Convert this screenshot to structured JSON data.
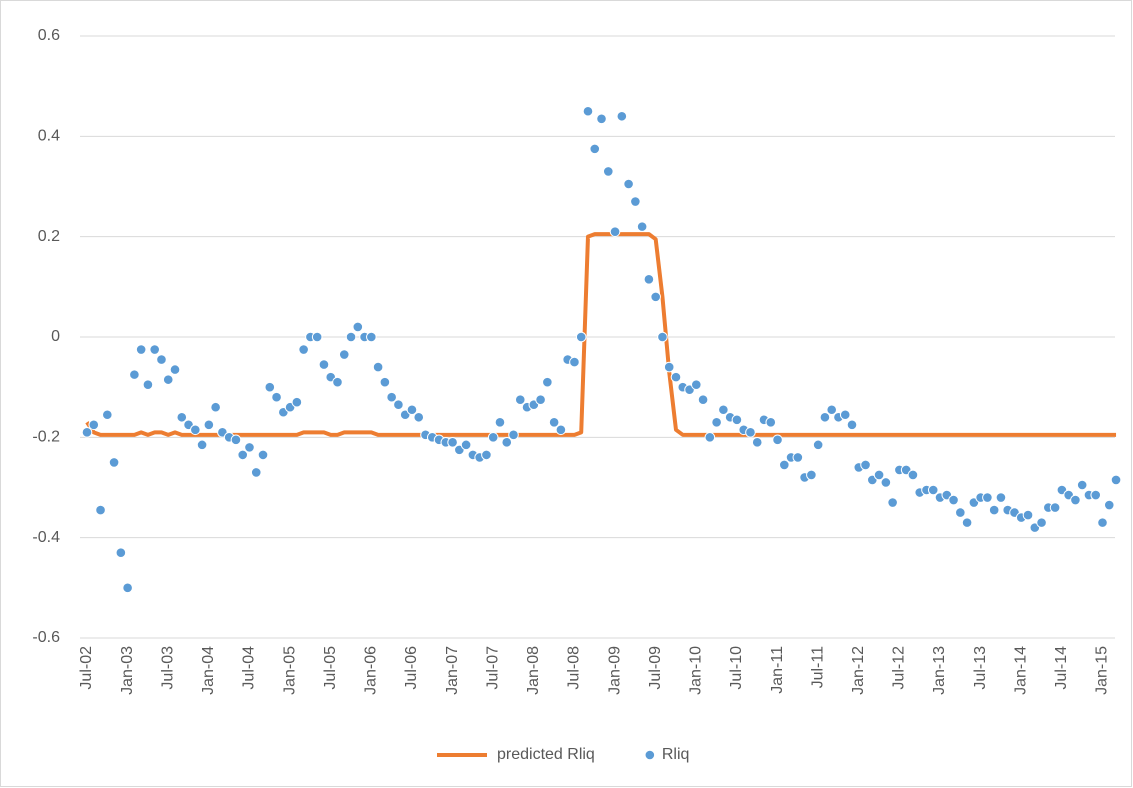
{
  "chart_data": {
    "type": "combo",
    "categories": [
      "Jul-02",
      null,
      null,
      null,
      null,
      null,
      "Jan-03",
      null,
      null,
      null,
      null,
      null,
      "Jul-03",
      null,
      null,
      null,
      null,
      null,
      "Jan-04",
      null,
      null,
      null,
      null,
      null,
      "Jul-04",
      null,
      null,
      null,
      null,
      null,
      "Jan-05",
      null,
      null,
      null,
      null,
      null,
      "Jul-05",
      null,
      null,
      null,
      null,
      null,
      "Jan-06",
      null,
      null,
      null,
      null,
      null,
      "Jul-06",
      null,
      null,
      null,
      null,
      null,
      "Jan-07",
      null,
      null,
      null,
      null,
      null,
      "Jul-07",
      null,
      null,
      null,
      null,
      null,
      "Jan-08",
      null,
      null,
      null,
      null,
      null,
      "Jul-08",
      null,
      null,
      null,
      null,
      null,
      "Jan-09",
      null,
      null,
      null,
      null,
      null,
      "Jul-09",
      null,
      null,
      null,
      null,
      null,
      "Jan-10",
      null,
      null,
      null,
      null,
      null,
      "Jul-10",
      null,
      null,
      null,
      null,
      null,
      "Jan-11",
      null,
      null,
      null,
      null,
      null,
      "Jul-11",
      null,
      null,
      null,
      null,
      null,
      "Jan-12",
      null,
      null,
      null,
      null,
      null,
      "Jul-12",
      null,
      null,
      null,
      null,
      null,
      "Jan-13",
      null,
      null,
      null,
      null,
      null,
      "Jul-13",
      null,
      null,
      null,
      null,
      null,
      "Jan-14",
      null,
      null,
      null,
      null,
      null,
      "Jul-14",
      null,
      null,
      null,
      null,
      null,
      "Jan-15",
      null,
      null
    ],
    "series": [
      {
        "name": "predicted Rliq",
        "type": "line",
        "color": "#ed7d31",
        "values": [
          -0.17,
          -0.19,
          -0.195,
          -0.195,
          -0.195,
          -0.195,
          -0.195,
          -0.195,
          -0.19,
          -0.195,
          -0.19,
          -0.19,
          -0.195,
          -0.19,
          -0.195,
          -0.195,
          -0.195,
          -0.195,
          -0.195,
          -0.195,
          -0.195,
          -0.195,
          -0.195,
          -0.195,
          -0.195,
          -0.195,
          -0.195,
          -0.195,
          -0.195,
          -0.195,
          -0.195,
          -0.195,
          -0.19,
          -0.19,
          -0.19,
          -0.19,
          -0.195,
          -0.195,
          -0.19,
          -0.19,
          -0.19,
          -0.19,
          -0.19,
          -0.195,
          -0.195,
          -0.195,
          -0.195,
          -0.195,
          -0.195,
          -0.195,
          -0.195,
          -0.195,
          -0.195,
          -0.195,
          -0.195,
          -0.195,
          -0.195,
          -0.195,
          -0.195,
          -0.195,
          -0.195,
          -0.195,
          -0.195,
          -0.195,
          -0.195,
          -0.195,
          -0.195,
          -0.195,
          -0.195,
          -0.195,
          -0.195,
          -0.195,
          -0.195,
          -0.19,
          0.2,
          0.205,
          0.205,
          0.205,
          0.205,
          0.205,
          0.205,
          0.205,
          0.205,
          0.205,
          0.195,
          0.08,
          -0.07,
          -0.185,
          -0.195,
          -0.195,
          -0.195,
          -0.195,
          -0.195,
          -0.195,
          -0.195,
          -0.195,
          -0.195,
          -0.195,
          -0.195,
          -0.195,
          -0.195,
          -0.195,
          -0.195,
          -0.195,
          -0.195,
          -0.195,
          -0.195,
          -0.195,
          -0.195,
          -0.195,
          -0.195,
          -0.195,
          -0.195,
          -0.195,
          -0.195,
          -0.195,
          -0.195,
          -0.195,
          -0.195,
          -0.195,
          -0.195,
          -0.195,
          -0.195,
          -0.195,
          -0.195,
          -0.195,
          -0.195,
          -0.195,
          -0.195,
          -0.195,
          -0.195,
          -0.195,
          -0.195,
          -0.195,
          -0.195,
          -0.195,
          -0.195,
          -0.195,
          -0.195,
          -0.195,
          -0.195,
          -0.195,
          -0.195,
          -0.195,
          -0.195,
          -0.195,
          -0.195,
          -0.195,
          -0.195,
          -0.195,
          -0.195,
          -0.195,
          -0.195
        ]
      },
      {
        "name": "Rliq",
        "type": "scatter",
        "color": "#5b9bd5",
        "values": [
          -0.19,
          -0.175,
          -0.345,
          -0.155,
          -0.25,
          -0.43,
          -0.5,
          -0.075,
          -0.025,
          -0.095,
          -0.025,
          -0.045,
          -0.085,
          -0.065,
          -0.16,
          -0.175,
          -0.185,
          -0.215,
          -0.175,
          -0.14,
          -0.19,
          -0.2,
          -0.205,
          -0.235,
          -0.22,
          -0.27,
          -0.235,
          -0.1,
          -0.12,
          -0.15,
          -0.14,
          -0.13,
          -0.025,
          0,
          0,
          -0.055,
          -0.08,
          -0.09,
          -0.035,
          0,
          0.02,
          0,
          0,
          -0.06,
          -0.09,
          -0.12,
          -0.135,
          -0.155,
          -0.145,
          -0.16,
          -0.195,
          -0.2,
          -0.205,
          -0.21,
          -0.21,
          -0.225,
          -0.215,
          -0.235,
          -0.24,
          -0.235,
          -0.2,
          -0.17,
          -0.21,
          -0.195,
          -0.125,
          -0.14,
          -0.135,
          -0.125,
          -0.09,
          -0.17,
          -0.185,
          -0.045,
          -0.05,
          0,
          0.45,
          0.375,
          0.435,
          0.33,
          0.21,
          0.44,
          0.305,
          0.27,
          0.22,
          0.115,
          0.08,
          0,
          -0.06,
          -0.08,
          -0.1,
          -0.105,
          -0.095,
          -0.125,
          -0.2,
          -0.17,
          -0.145,
          -0.16,
          -0.165,
          -0.185,
          -0.19,
          -0.21,
          -0.165,
          -0.17,
          -0.205,
          -0.255,
          -0.24,
          -0.24,
          -0.28,
          -0.275,
          -0.215,
          -0.16,
          -0.145,
          -0.16,
          -0.155,
          -0.175,
          -0.26,
          -0.255,
          -0.285,
          -0.275,
          -0.29,
          -0.33,
          -0.265,
          -0.265,
          -0.275,
          -0.31,
          -0.305,
          -0.305,
          -0.32,
          -0.315,
          -0.325,
          -0.35,
          -0.37,
          -0.33,
          -0.32,
          -0.32,
          -0.345,
          -0.32,
          -0.345,
          -0.35,
          -0.36,
          -0.355,
          -0.38,
          -0.37,
          -0.34,
          -0.34,
          -0.305,
          -0.315,
          -0.325,
          -0.295,
          -0.315,
          -0.315,
          -0.37,
          -0.335,
          -0.285
        ]
      }
    ],
    "ylim": [
      -0.6,
      0.6
    ],
    "yticks": [
      -0.6,
      -0.4,
      -0.2,
      0,
      0.2,
      0.4,
      0.6
    ],
    "grid": true,
    "legend": "bottom"
  }
}
